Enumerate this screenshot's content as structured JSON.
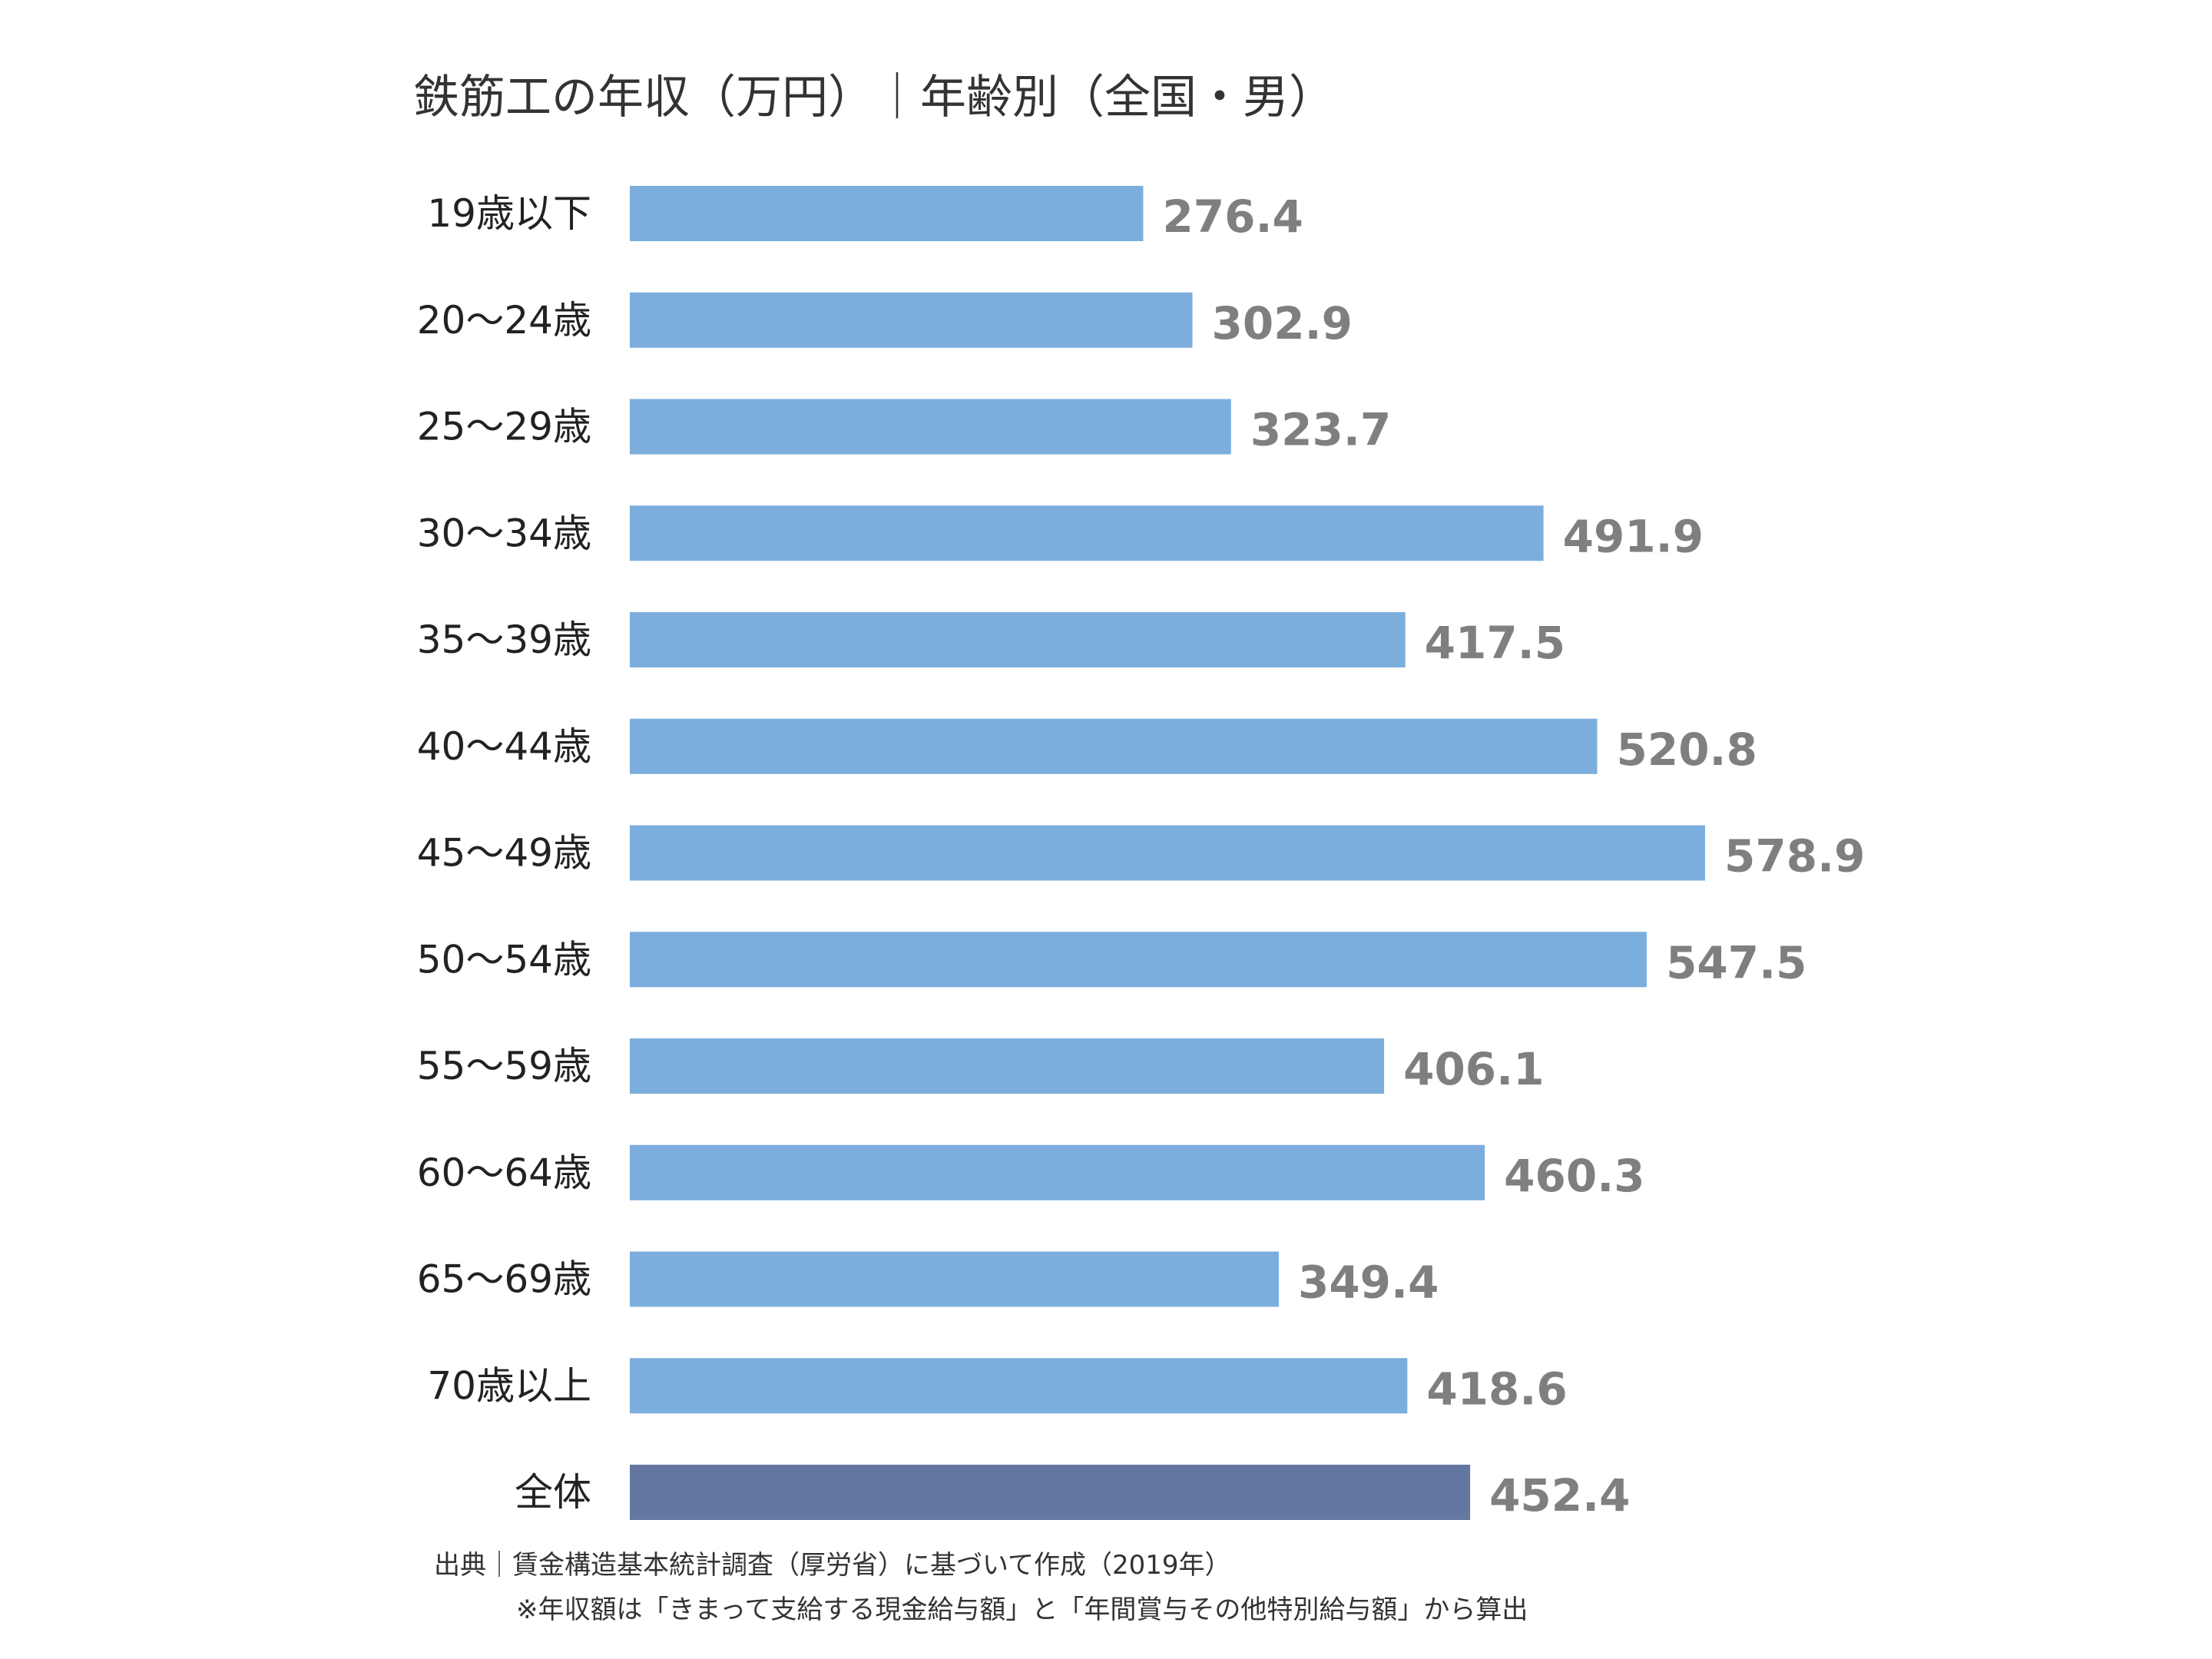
{
  "chart_data": {
    "type": "bar",
    "orientation": "horizontal",
    "title": "鉄筋工の年収（万円）｜年齢別（全国・男）",
    "categories": [
      "19歳以下",
      "20～24歳",
      "25～29歳",
      "30～34歳",
      "35～39歳",
      "40～44歳",
      "45～49歳",
      "50～54歳",
      "55～59歳",
      "60～64歳",
      "65～69歳",
      "70歳以上",
      "全体"
    ],
    "values": [
      276.4,
      302.9,
      323.7,
      491.9,
      417.5,
      520.8,
      578.9,
      547.5,
      406.1,
      460.3,
      349.4,
      418.6,
      452.4
    ],
    "value_labels": [
      "276.4",
      "302.9",
      "323.7",
      "491.9",
      "417.5",
      "520.8",
      "578.9",
      "547.5",
      "406.1",
      "460.3",
      "349.4",
      "418.6",
      "452.4"
    ],
    "colors": {
      "bar": "#7caedd",
      "total_bar": "#6477a0",
      "value_label": "#7f7f7f",
      "category_label": "#222222"
    },
    "xlim": [
      0,
      578.9
    ],
    "grid": false,
    "legend": "none"
  },
  "source": "出典｜賃金構造基本統計調査（厚労省）に基づいて作成（2019年）",
  "note": "※年収額は「きまって支給する現金給与額」と「年間賞与その他特別給与額」から算出"
}
